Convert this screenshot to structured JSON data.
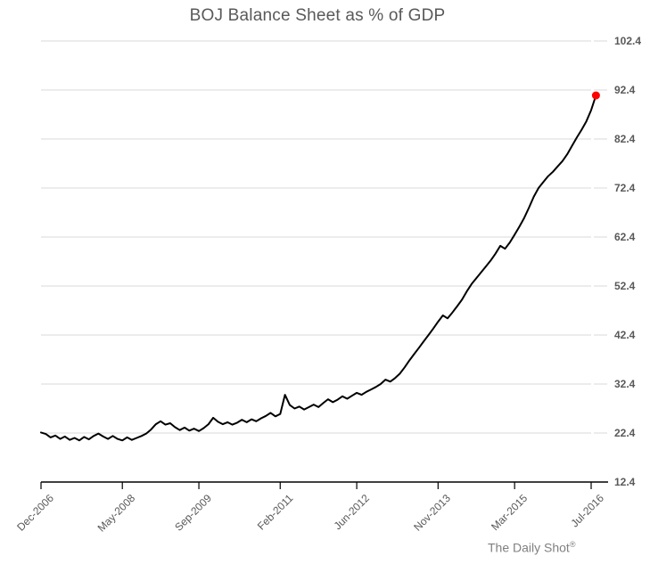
{
  "title": "BOJ Balance Sheet as % of GDP",
  "attribution": {
    "text": "The Daily Shot",
    "registered": "®"
  },
  "colors": {
    "series_line": "#000000",
    "end_dot": "#fe0000",
    "gridline": "#d9d9d9",
    "y_tick": "#d9d9d9",
    "axis_line": "#000000",
    "title_text": "#595959",
    "tick_text": "#595959",
    "attribution_text": "#808080"
  },
  "chart_data": {
    "type": "line",
    "title": "BOJ Balance Sheet as % of GDP",
    "xlabel": "",
    "ylabel": "",
    "ylim": [
      12.4,
      102.4
    ],
    "grid": "horizontal",
    "legend": "none",
    "y_tick_labels": [
      "12.4",
      "22.4",
      "32.4",
      "42.4",
      "52.4",
      "62.4",
      "72.4",
      "82.4",
      "92.4",
      "102.4"
    ],
    "y_tick_values": [
      12.4,
      22.4,
      32.4,
      42.4,
      52.4,
      62.4,
      72.4,
      82.4,
      92.4,
      102.4
    ],
    "x_tick_labels": [
      "Dec-2006",
      "May-2008",
      "Sep-2009",
      "Feb-2011",
      "Jun-2012",
      "Nov-2013",
      "Mar-2015",
      "Jul-2016"
    ],
    "x_tick_month_offsets": [
      0,
      17,
      33,
      50,
      66,
      83,
      99,
      115
    ],
    "series": [
      {
        "name": "BOJ balance sheet as % of GDP",
        "frequency": "monthly",
        "first_point": "Dec-2006",
        "last_point": "Aug-2016",
        "last_value": 91.3,
        "end_marker_color": "#fe0000",
        "values": [
          22.5,
          22.2,
          21.5,
          21.9,
          21.2,
          21.7,
          21.0,
          21.4,
          20.9,
          21.6,
          21.1,
          21.8,
          22.3,
          21.7,
          21.2,
          21.8,
          21.2,
          20.9,
          21.5,
          21.0,
          21.4,
          21.8,
          22.3,
          23.1,
          24.2,
          24.8,
          24.1,
          24.4,
          23.6,
          23.0,
          23.5,
          22.9,
          23.3,
          22.8,
          23.4,
          24.2,
          25.5,
          24.7,
          24.2,
          24.6,
          24.1,
          24.5,
          25.1,
          24.6,
          25.2,
          24.8,
          25.4,
          25.9,
          26.5,
          25.8,
          26.3,
          30.2,
          28.1,
          27.4,
          27.8,
          27.2,
          27.7,
          28.2,
          27.7,
          28.5,
          29.3,
          28.7,
          29.2,
          29.9,
          29.4,
          30.0,
          30.6,
          30.2,
          30.8,
          31.3,
          31.8,
          32.4,
          33.3,
          32.9,
          33.6,
          34.5,
          35.8,
          37.2,
          38.5,
          39.8,
          41.1,
          42.4,
          43.7,
          45.1,
          46.4,
          45.8,
          47.0,
          48.3,
          49.6,
          51.3,
          52.8,
          54.0,
          55.2,
          56.4,
          57.6,
          59.0,
          60.6,
          60.0,
          61.3,
          62.9,
          64.5,
          66.3,
          68.4,
          70.6,
          72.4,
          73.6,
          74.8,
          75.7,
          76.8,
          77.9,
          79.3,
          81.0,
          82.7,
          84.3,
          86.0,
          88.3,
          91.3
        ]
      }
    ]
  }
}
